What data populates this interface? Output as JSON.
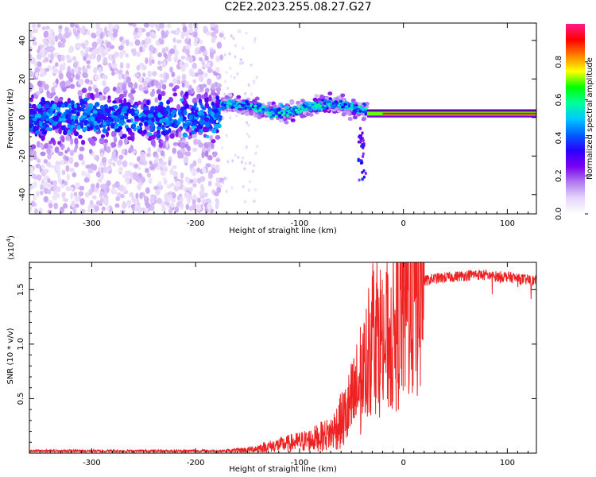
{
  "title": "C2E2.2023.255.08.27.G27",
  "chart_data": [
    {
      "type": "heatmap",
      "title": "C2E2.2023.255.08.27.G27",
      "xlabel": "Height of straight line (km)",
      "ylabel": "Frequency (Hz)",
      "xlim": [
        -360,
        128
      ],
      "ylim": [
        -50,
        49
      ],
      "xticks": [
        -300,
        -200,
        -100,
        0,
        100
      ],
      "yticks": [
        -40,
        -20,
        0,
        20,
        40
      ],
      "colorbar": {
        "label": "Normalized spectral amplitude",
        "range": [
          0.0,
          1.0
        ],
        "ticks": [
          0.0,
          0.2,
          0.4,
          0.6,
          0.8
        ],
        "colormap": [
          "#ffffff",
          "#e6d6fa",
          "#b07af0",
          "#7a00f0",
          "#2a00ff",
          "#0060ff",
          "#00c8ff",
          "#00ff9a",
          "#00ff00",
          "#ffff00",
          "#ff8000",
          "#ff0000",
          "#ff1a8c"
        ]
      },
      "description_regions": [
        {
          "x_range": [
            -360,
            -175
          ],
          "frequency_center": 0,
          "spread_hz": 49,
          "max_amplitude": 0.45
        },
        {
          "x_range": [
            -175,
            -35
          ],
          "frequency_center": 5,
          "spread_hz": 15,
          "max_amplitude": 0.6
        },
        {
          "x_range": [
            -35,
            128
          ],
          "frequency_center": 2,
          "spread_hz": 2,
          "max_amplitude": 1.0
        }
      ]
    },
    {
      "type": "line",
      "xlabel": "Height of straight line (km)",
      "ylabel": "SNR (10 * v/v)",
      "y_multiplier": "(x10",
      "y_multiplier_exp": "4",
      "y_multiplier_close": ")",
      "xlim": [
        -360,
        128
      ],
      "ylim": [
        0.0,
        1.75
      ],
      "xticks": [
        -300,
        -200,
        -100,
        0,
        100
      ],
      "yticks": [
        0.5,
        1.0,
        1.5
      ],
      "color": "#ee2222",
      "series": [
        {
          "x": [
            -360,
            -300,
            -250,
            -200,
            -170,
            -150,
            -130,
            -110,
            -90,
            -70,
            -55,
            -45,
            -35,
            -28,
            -20,
            -10,
            0,
            10,
            20,
            30,
            50,
            70,
            90,
            100,
            110,
            128
          ],
          "y": [
            0.02,
            0.02,
            0.02,
            0.02,
            0.02,
            0.03,
            0.06,
            0.09,
            0.12,
            0.18,
            0.35,
            0.55,
            0.85,
            1.2,
            1.0,
            1.1,
            1.35,
            1.5,
            1.58,
            1.6,
            1.62,
            1.64,
            1.62,
            1.62,
            1.6,
            1.58
          ]
        }
      ]
    }
  ]
}
